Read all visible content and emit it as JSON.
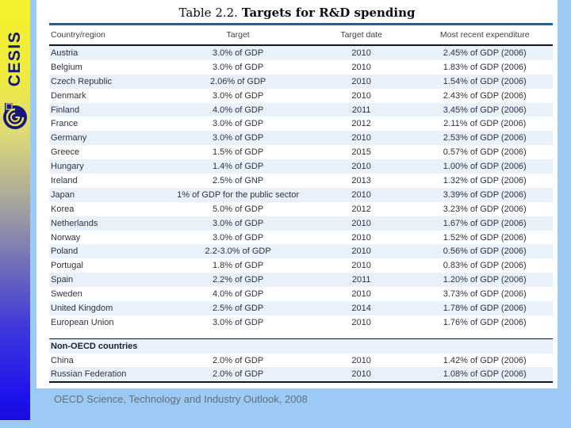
{
  "logo": {
    "text": "CESIS"
  },
  "table": {
    "title_prefix": "Table 2.2.",
    "title_main": "Targets for R&D spending",
    "columns": [
      "Country/region",
      "Target",
      "Target date",
      "Most recent expenditure"
    ],
    "rows": [
      {
        "country": "Austria",
        "target": "3.0% of GDP",
        "date": "2010",
        "expenditure": "2.45% of GDP (2006)"
      },
      {
        "country": "Belgium",
        "target": "3.0% of GDP",
        "date": "2010",
        "expenditure": "1.83% of GDP (2006)"
      },
      {
        "country": "Czech Republic",
        "target": "2.06% of GDP",
        "date": "2010",
        "expenditure": "1.54% of GDP (2006)"
      },
      {
        "country": "Denmark",
        "target": "3.0% of GDP",
        "date": "2010",
        "expenditure": "2.43% of GDP (2006)"
      },
      {
        "country": "Finland",
        "target": "4.0% of GDP",
        "date": "2011",
        "expenditure": "3.45% of GDP (2006)"
      },
      {
        "country": "France",
        "target": "3.0% of GDP",
        "date": "2012",
        "expenditure": "2.11% of GDP (2006)"
      },
      {
        "country": "Germany",
        "target": "3.0% of GDP",
        "date": "2010",
        "expenditure": "2.53% of GDP (2006)"
      },
      {
        "country": "Greece",
        "target": "1.5% of GDP",
        "date": "2015",
        "expenditure": "0.57% of GDP (2006)"
      },
      {
        "country": "Hungary",
        "target": "1.4% of GDP",
        "date": "2010",
        "expenditure": "1.00% of GDP (2006)"
      },
      {
        "country": "Ireland",
        "target": "2.5% of GNP",
        "date": "2013",
        "expenditure": "1.32% of GDP (2006)"
      },
      {
        "country": "Japan",
        "target": "1% of GDP for the public sector",
        "date": "2010",
        "expenditure": "3.39% of GDP (2006)"
      },
      {
        "country": "Korea",
        "target": "5.0% of GDP",
        "date": "2012",
        "expenditure": "3.23% of GDP (2006)"
      },
      {
        "country": "Netherlands",
        "target": "3.0% of GDP",
        "date": "2010",
        "expenditure": "1.67% of GDP (2006)"
      },
      {
        "country": "Norway",
        "target": "3.0% of GDP",
        "date": "2010",
        "expenditure": "1.52% of GDP (2006)"
      },
      {
        "country": "Poland",
        "target": "2.2-3.0% of GDP",
        "date": "2010",
        "expenditure": "0.56% of GDP (2006)"
      },
      {
        "country": "Portugal",
        "target": "1.8% of GDP",
        "date": "2010",
        "expenditure": "0.83% of GDP (2006)"
      },
      {
        "country": "Spain",
        "target": "2.2% of GDP",
        "date": "2011",
        "expenditure": "1.20% of GDP (2006)"
      },
      {
        "country": "Sweden",
        "target": "4.0% of GDP",
        "date": "2010",
        "expenditure": "3.73% of GDP (2006)"
      },
      {
        "country": "United Kingdom",
        "target": "2.5% of GDP",
        "date": "2014",
        "expenditure": "1.78% of GDP (2006)"
      },
      {
        "country": "European Union",
        "target": "3.0% of GDP",
        "date": "2010",
        "expenditure": "1.76% of GDP (2006)"
      }
    ],
    "non_oecd": {
      "label": "Non-OECD countries",
      "rows": [
        {
          "country": "China",
          "target": "2.0% of GDP",
          "date": "2010",
          "expenditure": "1.42% of GDP (2006)"
        },
        {
          "country": "Russian Federation",
          "target": "2.0% of GDP",
          "date": "2010",
          "expenditure": "1.08% of GDP (2006)"
        }
      ]
    }
  },
  "footer": {
    "source": "OECD Science, Technology and Industry Outlook, 2008"
  },
  "colors": {
    "slide_bg": "#9ccaf5",
    "accent_line": "#1464ae",
    "row_shade": "#e9f1fa",
    "logo_navy": "#16167c",
    "strip_top": "#f4f12b",
    "strip_bottom": "#1d11ee"
  }
}
